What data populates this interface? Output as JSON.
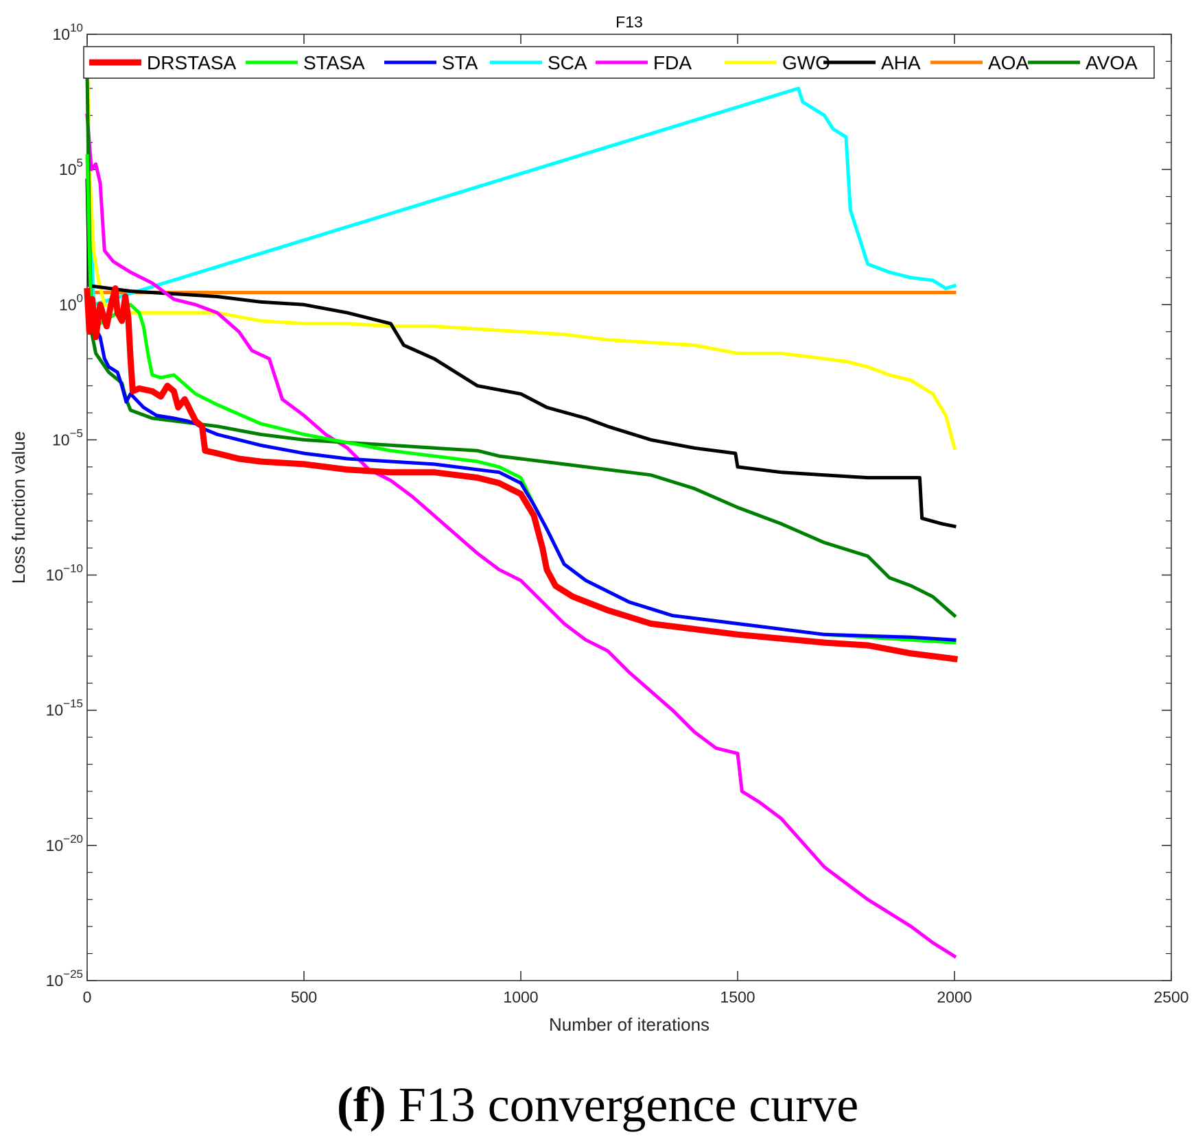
{
  "caption": {
    "label": "(f)",
    "text": "F13 convergence curve"
  },
  "chart_data": {
    "type": "line",
    "title": "F13",
    "xlabel": "Number of iterations",
    "ylabel": "Loss function value",
    "yscale": "log",
    "xlim": [
      0,
      2500
    ],
    "ylim_exp": [
      -25,
      10
    ],
    "x_ticks": [
      0,
      500,
      1000,
      1500,
      2000,
      2500
    ],
    "y_ticks_exp": [
      -25,
      -20,
      -15,
      -10,
      -5,
      0,
      5,
      10
    ],
    "grid": false,
    "legend_position": "top",
    "series": [
      {
        "name": "DRSTASA",
        "color": "#ff0000",
        "points": [
          [
            0,
            0.5
          ],
          [
            5,
            -1
          ],
          [
            12,
            0.2
          ],
          [
            20,
            -1.2
          ],
          [
            30,
            0
          ],
          [
            45,
            -0.8
          ],
          [
            55,
            0
          ],
          [
            65,
            0.6
          ],
          [
            70,
            -0.3
          ],
          [
            80,
            -0.6
          ],
          [
            88,
            0.3
          ],
          [
            95,
            -0.5
          ],
          [
            100,
            -2
          ],
          [
            105,
            -3.2
          ],
          [
            120,
            -3.1
          ],
          [
            150,
            -3.2
          ],
          [
            170,
            -3.4
          ],
          [
            185,
            -3.0
          ],
          [
            200,
            -3.2
          ],
          [
            210,
            -3.8
          ],
          [
            225,
            -3.5
          ],
          [
            250,
            -4.3
          ],
          [
            265,
            -4.5
          ],
          [
            272,
            -5.4
          ],
          [
            300,
            -5.5
          ],
          [
            350,
            -5.7
          ],
          [
            400,
            -5.8
          ],
          [
            500,
            -5.9
          ],
          [
            600,
            -6.1
          ],
          [
            700,
            -6.2
          ],
          [
            800,
            -6.2
          ],
          [
            900,
            -6.4
          ],
          [
            950,
            -6.6
          ],
          [
            1000,
            -7.0
          ],
          [
            1030,
            -7.8
          ],
          [
            1050,
            -9
          ],
          [
            1060,
            -9.8
          ],
          [
            1080,
            -10.4
          ],
          [
            1120,
            -10.8
          ],
          [
            1200,
            -11.3
          ],
          [
            1300,
            -11.8
          ],
          [
            1400,
            -12.0
          ],
          [
            1500,
            -12.2
          ],
          [
            1700,
            -12.5
          ],
          [
            1800,
            -12.6
          ],
          [
            1900,
            -12.9
          ],
          [
            2000,
            -13.1
          ]
        ]
      },
      {
        "name": "STASA",
        "color": "#00ff00",
        "points": [
          [
            0,
            5.5
          ],
          [
            8,
            0
          ],
          [
            20,
            -0.8
          ],
          [
            60,
            -0.4
          ],
          [
            100,
            0
          ],
          [
            120,
            -0.3
          ],
          [
            130,
            -0.8
          ],
          [
            140,
            -1.8
          ],
          [
            150,
            -2.6
          ],
          [
            170,
            -2.7
          ],
          [
            200,
            -2.6
          ],
          [
            250,
            -3.3
          ],
          [
            300,
            -3.7
          ],
          [
            400,
            -4.4
          ],
          [
            500,
            -4.8
          ],
          [
            600,
            -5.1
          ],
          [
            700,
            -5.4
          ],
          [
            800,
            -5.6
          ],
          [
            900,
            -5.8
          ],
          [
            950,
            -6.0
          ],
          [
            1000,
            -6.4
          ],
          [
            1030,
            -7.4
          ],
          [
            1060,
            -8.3
          ],
          [
            1100,
            -9.6
          ],
          [
            1150,
            -10.2
          ],
          [
            1250,
            -11
          ],
          [
            1350,
            -11.5
          ],
          [
            1500,
            -11.8
          ],
          [
            1700,
            -12.2
          ],
          [
            1900,
            -12.4
          ],
          [
            2000,
            -12.5
          ]
        ]
      },
      {
        "name": "STA",
        "color": "#0000ff",
        "points": [
          [
            0,
            0
          ],
          [
            10,
            -0.6
          ],
          [
            30,
            -1.2
          ],
          [
            40,
            -2
          ],
          [
            50,
            -2.3
          ],
          [
            70,
            -2.5
          ],
          [
            80,
            -3
          ],
          [
            90,
            -3.6
          ],
          [
            100,
            -3.3
          ],
          [
            130,
            -3.8
          ],
          [
            160,
            -4.1
          ],
          [
            200,
            -4.2
          ],
          [
            230,
            -4.3
          ],
          [
            250,
            -4.4
          ],
          [
            270,
            -4.6
          ],
          [
            300,
            -4.8
          ],
          [
            400,
            -5.2
          ],
          [
            500,
            -5.5
          ],
          [
            600,
            -5.7
          ],
          [
            700,
            -5.8
          ],
          [
            800,
            -5.9
          ],
          [
            900,
            -6.1
          ],
          [
            950,
            -6.2
          ],
          [
            1000,
            -6.6
          ],
          [
            1030,
            -7.4
          ],
          [
            1060,
            -8.3
          ],
          [
            1100,
            -9.6
          ],
          [
            1150,
            -10.2
          ],
          [
            1250,
            -11
          ],
          [
            1350,
            -11.5
          ],
          [
            1500,
            -11.8
          ],
          [
            1700,
            -12.2
          ],
          [
            1900,
            -12.3
          ],
          [
            2000,
            -12.4
          ]
        ]
      },
      {
        "name": "SCA",
        "color": "#00ffff",
        "points": [
          [
            0,
            8.8
          ],
          [
            5,
            4.5
          ],
          [
            15,
            0
          ],
          [
            1640,
            8
          ],
          [
            1650,
            7.5
          ],
          [
            1700,
            7
          ],
          [
            1720,
            6.5
          ],
          [
            1750,
            6.2
          ],
          [
            1760,
            3.5
          ],
          [
            1780,
            2.5
          ],
          [
            1800,
            1.5
          ],
          [
            1850,
            1.2
          ],
          [
            1900,
            1
          ],
          [
            1950,
            0.9
          ],
          [
            1980,
            0.6
          ],
          [
            2000,
            0.7
          ]
        ]
      },
      {
        "name": "FDA",
        "color": "#ff00ff",
        "points": [
          [
            0,
            7
          ],
          [
            10,
            5
          ],
          [
            20,
            5.2
          ],
          [
            30,
            4.5
          ],
          [
            40,
            2
          ],
          [
            60,
            1.6
          ],
          [
            100,
            1.2
          ],
          [
            150,
            0.8
          ],
          [
            200,
            0.2
          ],
          [
            250,
            0
          ],
          [
            300,
            -0.3
          ],
          [
            350,
            -1
          ],
          [
            380,
            -1.7
          ],
          [
            420,
            -2
          ],
          [
            450,
            -3.5
          ],
          [
            500,
            -4.1
          ],
          [
            550,
            -4.8
          ],
          [
            600,
            -5.3
          ],
          [
            650,
            -6.1
          ],
          [
            700,
            -6.5
          ],
          [
            750,
            -7.1
          ],
          [
            800,
            -7.8
          ],
          [
            850,
            -8.5
          ],
          [
            900,
            -9.2
          ],
          [
            950,
            -9.8
          ],
          [
            1000,
            -10.2
          ],
          [
            1050,
            -11
          ],
          [
            1100,
            -11.8
          ],
          [
            1150,
            -12.4
          ],
          [
            1200,
            -12.8
          ],
          [
            1250,
            -13.6
          ],
          [
            1300,
            -14.3
          ],
          [
            1350,
            -15
          ],
          [
            1400,
            -15.8
          ],
          [
            1450,
            -16.4
          ],
          [
            1500,
            -16.6
          ],
          [
            1510,
            -18
          ],
          [
            1550,
            -18.4
          ],
          [
            1600,
            -19
          ],
          [
            1650,
            -19.9
          ],
          [
            1700,
            -20.8
          ],
          [
            1750,
            -21.4
          ],
          [
            1800,
            -22
          ],
          [
            1850,
            -22.5
          ],
          [
            1900,
            -23
          ],
          [
            1950,
            -23.6
          ],
          [
            2000,
            -24.1
          ]
        ]
      },
      {
        "name": "GWO",
        "color": "#ffff00",
        "points": [
          [
            0,
            9.5
          ],
          [
            5,
            5
          ],
          [
            15,
            2
          ],
          [
            25,
            1
          ],
          [
            40,
            0
          ],
          [
            100,
            -0.3
          ],
          [
            200,
            -0.3
          ],
          [
            300,
            -0.3
          ],
          [
            400,
            -0.6
          ],
          [
            500,
            -0.7
          ],
          [
            600,
            -0.7
          ],
          [
            700,
            -0.8
          ],
          [
            800,
            -0.8
          ],
          [
            900,
            -0.9
          ],
          [
            1000,
            -1.0
          ],
          [
            1100,
            -1.1
          ],
          [
            1200,
            -1.3
          ],
          [
            1300,
            -1.4
          ],
          [
            1400,
            -1.5
          ],
          [
            1500,
            -1.8
          ],
          [
            1600,
            -1.8
          ],
          [
            1700,
            -2.0
          ],
          [
            1750,
            -2.1
          ],
          [
            1800,
            -2.3
          ],
          [
            1850,
            -2.6
          ],
          [
            1900,
            -2.8
          ],
          [
            1950,
            -3.3
          ],
          [
            1980,
            -4.1
          ],
          [
            2000,
            -5.3
          ]
        ]
      },
      {
        "name": "AHA",
        "color": "#000000",
        "points": [
          [
            0,
            4.6
          ],
          [
            5,
            0.7
          ],
          [
            100,
            0.5
          ],
          [
            200,
            0.4
          ],
          [
            300,
            0.3
          ],
          [
            400,
            0.1
          ],
          [
            500,
            0
          ],
          [
            600,
            -0.3
          ],
          [
            700,
            -0.7
          ],
          [
            730,
            -1.5
          ],
          [
            800,
            -2.0
          ],
          [
            850,
            -2.5
          ],
          [
            900,
            -3.0
          ],
          [
            1000,
            -3.3
          ],
          [
            1060,
            -3.8
          ],
          [
            1150,
            -4.2
          ],
          [
            1200,
            -4.5
          ],
          [
            1300,
            -5.0
          ],
          [
            1400,
            -5.3
          ],
          [
            1495,
            -5.5
          ],
          [
            1500,
            -6.0
          ],
          [
            1600,
            -6.2
          ],
          [
            1700,
            -6.3
          ],
          [
            1800,
            -6.4
          ],
          [
            1920,
            -6.4
          ],
          [
            1925,
            -7.9
          ],
          [
            1970,
            -8.1
          ],
          [
            2000,
            -8.2
          ]
        ]
      },
      {
        "name": "AOA",
        "color": "#ff8000",
        "points": [
          [
            0,
            0.45
          ],
          [
            500,
            0.45
          ],
          [
            1000,
            0.45
          ],
          [
            1500,
            0.45
          ],
          [
            2000,
            0.45
          ]
        ]
      },
      {
        "name": "AVOA",
        "color": "#008000",
        "points": [
          [
            0,
            8.5
          ],
          [
            5,
            3
          ],
          [
            10,
            -1
          ],
          [
            20,
            -1.8
          ],
          [
            50,
            -2.5
          ],
          [
            80,
            -2.9
          ],
          [
            90,
            -3.5
          ],
          [
            100,
            -3.9
          ],
          [
            150,
            -4.2
          ],
          [
            200,
            -4.3
          ],
          [
            300,
            -4.5
          ],
          [
            400,
            -4.8
          ],
          [
            500,
            -5.0
          ],
          [
            600,
            -5.1
          ],
          [
            700,
            -5.2
          ],
          [
            800,
            -5.3
          ],
          [
            900,
            -5.4
          ],
          [
            950,
            -5.6
          ],
          [
            1000,
            -5.7
          ],
          [
            1100,
            -5.9
          ],
          [
            1200,
            -6.1
          ],
          [
            1300,
            -6.3
          ],
          [
            1400,
            -6.8
          ],
          [
            1500,
            -7.5
          ],
          [
            1600,
            -8.1
          ],
          [
            1700,
            -8.8
          ],
          [
            1800,
            -9.3
          ],
          [
            1850,
            -10.1
          ],
          [
            1900,
            -10.4
          ],
          [
            1950,
            -10.8
          ],
          [
            2000,
            -11.5
          ]
        ]
      }
    ]
  }
}
